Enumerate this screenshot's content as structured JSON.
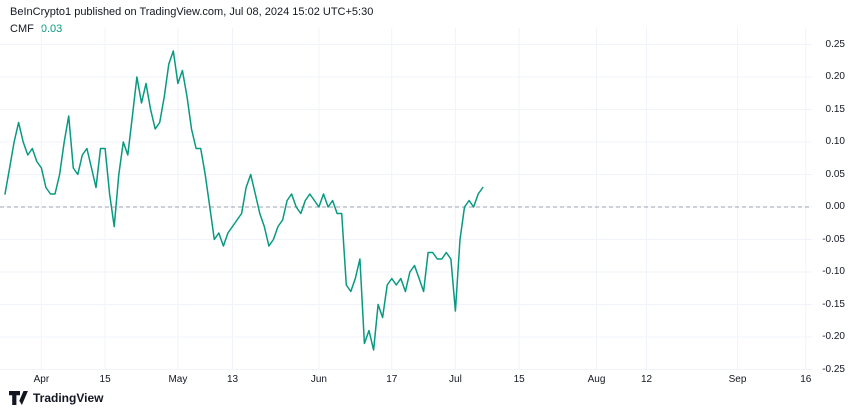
{
  "header": {
    "attribution": "BeInCrypto1 published on TradingView.com, Jul 08, 2024 15:02 UTC+5:30"
  },
  "legend": {
    "indicator": "CMF",
    "value": "0.03",
    "value_color": "#089981"
  },
  "footer": {
    "logo_text": "TradingView"
  },
  "colors": {
    "background": "#ffffff",
    "line": "#089981",
    "grid": "#f0f3fa",
    "zero_line": "#9da3ab",
    "text": "#131722"
  },
  "chart_data": {
    "type": "line",
    "title": "CMF",
    "xlabel": "",
    "ylabel": "",
    "grid": true,
    "ylim": [
      -0.26,
      0.28
    ],
    "last_value": 0.03,
    "zero_line": {
      "value": 0,
      "style": "dashed"
    },
    "y_ticks": [
      {
        "label": "0.25",
        "value": 0.25
      },
      {
        "label": "0.20",
        "value": 0.2
      },
      {
        "label": "0.15",
        "value": 0.15
      },
      {
        "label": "0.10",
        "value": 0.1
      },
      {
        "label": "0.05",
        "value": 0.05
      },
      {
        "label": "0.00",
        "value": 0.0
      },
      {
        "label": "-0.05",
        "value": -0.05
      },
      {
        "label": "-0.10",
        "value": -0.1
      },
      {
        "label": "-0.15",
        "value": -0.15
      },
      {
        "label": "-0.20",
        "value": -0.2
      },
      {
        "label": "-0.25",
        "value": -0.25
      }
    ],
    "x_ticks": [
      {
        "label": "Apr",
        "date": "2024-04-01"
      },
      {
        "label": "15",
        "date": "2024-04-15"
      },
      {
        "label": "May",
        "date": "2024-05-01"
      },
      {
        "label": "13",
        "date": "2024-05-13"
      },
      {
        "label": "Jun",
        "date": "2024-06-01"
      },
      {
        "label": "17",
        "date": "2024-06-17"
      },
      {
        "label": "Jul",
        "date": "2024-07-01"
      },
      {
        "label": "15",
        "date": "2024-07-15"
      },
      {
        "label": "Aug",
        "date": "2024-08-01"
      },
      {
        "label": "12",
        "date": "2024-08-12"
      },
      {
        "label": "Sep",
        "date": "2024-09-01"
      },
      {
        "label": "16",
        "date": "2024-09-16"
      }
    ],
    "series": [
      {
        "name": "CMF",
        "color": "#089981",
        "start_date": "2024-03-24",
        "interval_days": 1,
        "values": [
          0.02,
          0.06,
          0.1,
          0.13,
          0.1,
          0.08,
          0.09,
          0.07,
          0.06,
          0.03,
          0.02,
          0.02,
          0.05,
          0.1,
          0.14,
          0.06,
          0.05,
          0.08,
          0.09,
          0.06,
          0.03,
          0.09,
          0.09,
          0.02,
          -0.03,
          0.05,
          0.1,
          0.08,
          0.14,
          0.2,
          0.16,
          0.19,
          0.15,
          0.12,
          0.13,
          0.17,
          0.22,
          0.24,
          0.19,
          0.21,
          0.17,
          0.12,
          0.09,
          0.09,
          0.05,
          0.0,
          -0.05,
          -0.04,
          -0.06,
          -0.04,
          -0.03,
          -0.02,
          -0.01,
          0.03,
          0.05,
          0.02,
          -0.01,
          -0.03,
          -0.06,
          -0.05,
          -0.03,
          -0.02,
          0.01,
          0.02,
          0.0,
          -0.01,
          0.01,
          0.02,
          0.01,
          0.0,
          0.02,
          0.0,
          0.01,
          -0.01,
          -0.01,
          -0.12,
          -0.13,
          -0.11,
          -0.08,
          -0.21,
          -0.19,
          -0.22,
          -0.15,
          -0.17,
          -0.12,
          -0.11,
          -0.12,
          -0.11,
          -0.13,
          -0.1,
          -0.09,
          -0.11,
          -0.13,
          -0.07,
          -0.07,
          -0.08,
          -0.08,
          -0.07,
          -0.08,
          -0.16,
          -0.05,
          0.0,
          0.01,
          0.0,
          0.02,
          0.03
        ]
      }
    ]
  }
}
